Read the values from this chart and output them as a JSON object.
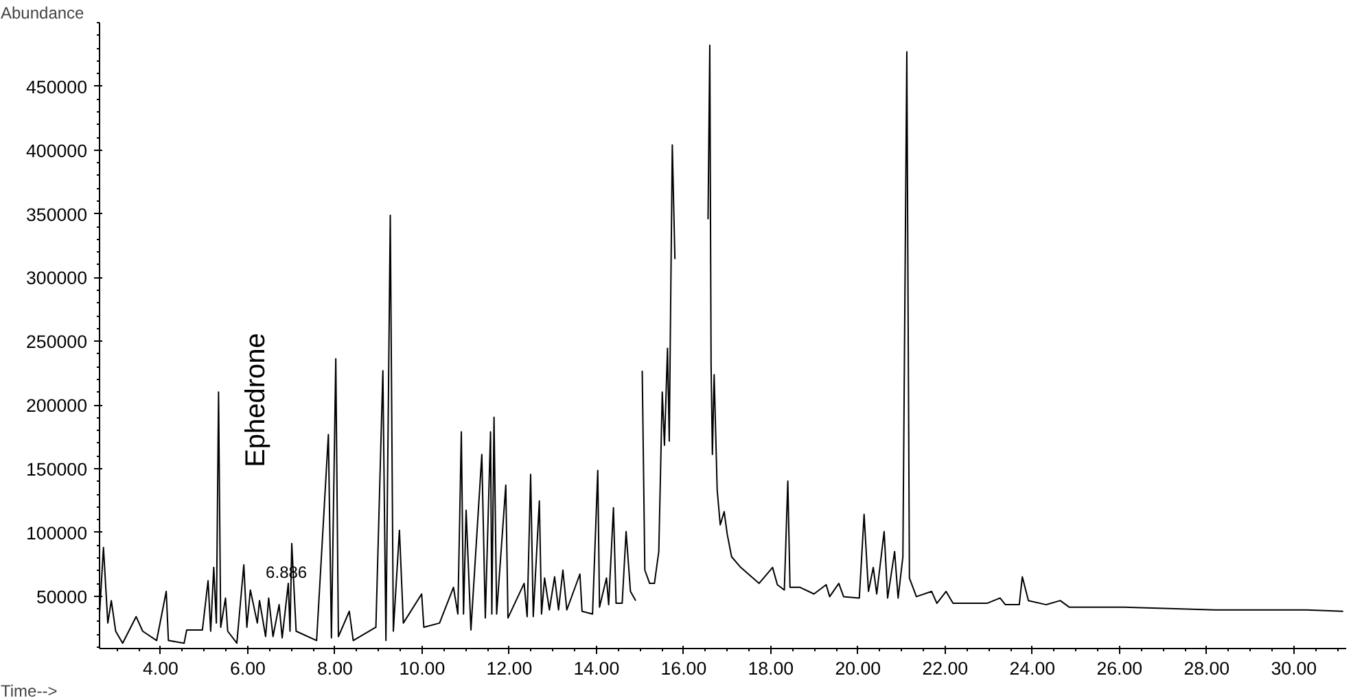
{
  "chart_data": {
    "type": "line",
    "xlabel": "Time-->",
    "ylabel": "Abundance",
    "xlim": [
      2.6,
      31.2
    ],
    "ylim": [
      9000,
      500000
    ],
    "xticks": [
      {
        "value": 4,
        "label": "4.00"
      },
      {
        "value": 6,
        "label": "6.00"
      },
      {
        "value": 8,
        "label": "8.00"
      },
      {
        "value": 10,
        "label": "10.00"
      },
      {
        "value": 12,
        "label": "12.00"
      },
      {
        "value": 14,
        "label": "14.00"
      },
      {
        "value": 16,
        "label": "16.00"
      },
      {
        "value": 18,
        "label": "18.00"
      },
      {
        "value": 20,
        "label": "20.00"
      },
      {
        "value": 22,
        "label": "22.00"
      },
      {
        "value": 24,
        "label": "24.00"
      },
      {
        "value": 26,
        "label": "26.00"
      },
      {
        "value": 28,
        "label": "28.00"
      },
      {
        "value": 30,
        "label": "30.00"
      }
    ],
    "yticks": [
      50000,
      100000,
      150000,
      200000,
      250000,
      300000,
      350000,
      400000,
      450000
    ],
    "grid": false,
    "annotations": [
      "Ephedrone",
      {
        "text": "6.886",
        "x": 6.886,
        "y": 69500
      }
    ],
    "series": [
      {
        "color": "#000000",
        "x": [
          2.6,
          2.69,
          2.79,
          2.87,
          2.97,
          3.13,
          3.44,
          3.59,
          3.91,
          4.13,
          4.18,
          4.54,
          4.6,
          4.96,
          5.09,
          5.15,
          5.22,
          5.28,
          5.33,
          5.38,
          5.49,
          5.54,
          5.75,
          5.91,
          5.98,
          6.06,
          6.22,
          6.27,
          6.41,
          6.48,
          6.58,
          6.72,
          6.79,
          6.93,
          6.97,
          7.01,
          7.11,
          7.58,
          7.85,
          7.92,
          8.02,
          8.08,
          8.33,
          8.42,
          8.94,
          9.1,
          9.17,
          9.27,
          9.34,
          9.48,
          9.57,
          9.99,
          10.04,
          10.4,
          10.72,
          10.82,
          10.9,
          10.95,
          11.01,
          11.12,
          11.37,
          11.45,
          11.57,
          11.6,
          11.65,
          11.71,
          11.92,
          11.97,
          12.34,
          12.41,
          12.49,
          12.55,
          12.69,
          12.74,
          12.81,
          12.92,
          13.04,
          13.13,
          13.23,
          13.32,
          13.62,
          13.67,
          13.91,
          14.03,
          14.07,
          14.23,
          14.28,
          14.39,
          14.45,
          14.59,
          14.68,
          14.78,
          14.9,
          15.01,
          15.05,
          15.11,
          15.22,
          15.33,
          15.43,
          15.51,
          15.56,
          15.63,
          15.67,
          15.74,
          15.8,
          15.85,
          15.88,
          15.9,
          16.2,
          16.49,
          16.53,
          16.56,
          16.6,
          16.63,
          16.66,
          16.7,
          16.77,
          16.84,
          16.93,
          17.0,
          17.1,
          17.31,
          17.73,
          18.04,
          18.15,
          18.31,
          18.39,
          18.44,
          18.67,
          18.99,
          19.27,
          19.35,
          19.56,
          19.67,
          20.03,
          20.14,
          20.24,
          20.35,
          20.43,
          20.6,
          20.68,
          20.84,
          20.92,
          21.03,
          21.12,
          21.18,
          21.34,
          21.69,
          21.81,
          22.02,
          22.18,
          22.96,
          23.26,
          23.38,
          23.7,
          23.77,
          23.91,
          24.32,
          24.64,
          24.85,
          26.1,
          28.2,
          30.29,
          31.13
        ],
        "values": [
          36100,
          88300,
          29000,
          46600,
          22600,
          13200,
          34000,
          22600,
          15300,
          53800,
          15300,
          13200,
          23600,
          23600,
          62200,
          22600,
          72600,
          29000,
          210200,
          25700,
          48600,
          22600,
          13200,
          74700,
          25700,
          54900,
          29000,
          46600,
          18400,
          48600,
          18400,
          43400,
          17400,
          60100,
          22600,
          91400,
          22600,
          15300,
          176900,
          17400,
          236300,
          18400,
          38200,
          15300,
          25700,
          226900,
          15300,
          348900,
          22600,
          101800,
          29000,
          51800,
          25700,
          29000,
          57000,
          36100,
          179000,
          36100,
          117500,
          23600,
          161200,
          33000,
          179000,
          36100,
          190400,
          36100,
          137200,
          33000,
          60100,
          34000,
          145600,
          34000,
          124700,
          36100,
          64300,
          39300,
          65300,
          39300,
          70500,
          39300,
          67400,
          38200,
          36100,
          148700,
          41400,
          64300,
          43400,
          119500,
          44500,
          44500,
          100800,
          53800,
          46600,
          null,
          226900,
          70500,
          60100,
          60100,
          85100,
          210200,
          168500,
          244600,
          171700,
          404100,
          314500,
          null,
          null,
          null,
          null,
          null,
          null,
          345800,
          482300,
          231100,
          161200,
          223800,
          133100,
          106000,
          116400,
          98700,
          81000,
          72600,
          60100,
          72600,
          59100,
          54900,
          140400,
          57000,
          57000,
          51800,
          59100,
          49700,
          60100,
          49700,
          48600,
          114300,
          53800,
          72600,
          51800,
          100800,
          48600,
          85100,
          48600,
          81000,
          477100,
          64300,
          49700,
          53800,
          44500,
          53800,
          44500,
          44500,
          48600,
          43400,
          43400,
          65300,
          46600,
          43400,
          46600,
          41400,
          41400,
          39300,
          39300,
          38200
        ]
      }
    ]
  }
}
